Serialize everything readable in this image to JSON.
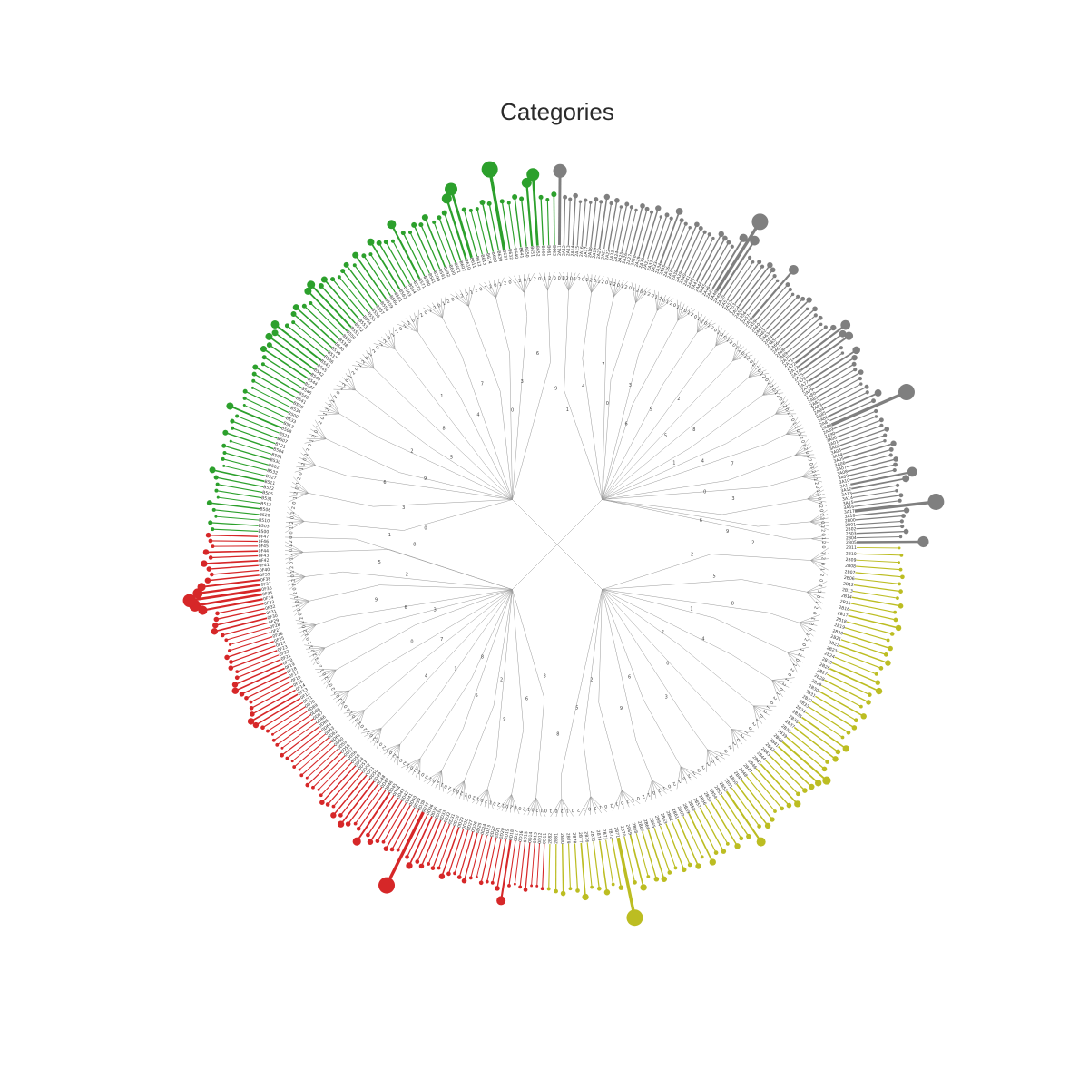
{
  "title": "Categories",
  "groups": [
    {
      "name": "green",
      "color": "#2ca02c",
      "leaves": [
        "B500",
        "B503",
        "B510",
        "B520",
        "B506",
        "B512",
        "B531",
        "B505",
        "B522",
        "B511",
        "B527",
        "B532",
        "B502",
        "B530",
        "B501",
        "B504",
        "B521",
        "B507",
        "B525",
        "B508",
        "B513",
        "B533",
        "B509",
        "B534",
        "B526",
        "B541",
        "B548",
        "B546",
        "B547",
        "B544",
        "B549",
        "B542",
        "B545",
        "B543",
        "B536",
        "B537",
        "B539",
        "B540",
        "B538",
        "B535",
        "B550",
        "B551",
        "B552",
        "B553",
        "B554",
        "B555",
        "B556",
        "B557",
        "B558",
        "B559",
        "B560",
        "B561",
        "B562",
        "B563",
        "B564",
        "B570",
        "B571",
        "B580",
        "B581",
        "B590",
        "B591",
        "B592",
        "B600",
        "B601",
        "B602",
        "B610",
        "B611",
        "B612",
        "B613",
        "B614",
        "B620",
        "B630",
        "B631",
        "B632",
        "B640",
        "B641",
        "B650",
        "B651",
        "B652",
        "B660",
        "B661",
        "B662"
      ],
      "values": [
        2,
        3,
        1,
        2,
        4,
        1,
        2,
        2,
        3,
        5,
        1,
        2,
        2,
        3,
        1,
        4,
        2,
        3,
        2,
        6,
        1,
        2,
        3,
        1,
        2,
        3,
        4,
        2,
        3,
        5,
        4,
        6,
        5,
        7,
        3,
        2,
        4,
        5,
        3,
        2,
        6,
        7,
        4,
        5,
        3,
        2,
        3,
        4,
        2,
        5,
        3,
        2,
        6,
        4,
        3,
        2,
        8,
        3,
        2,
        4,
        3,
        5,
        2,
        3,
        4,
        9,
        12,
        3,
        2,
        2,
        4,
        3,
        16,
        3,
        2,
        4,
        3,
        9,
        12,
        3,
        2,
        4
      ]
    },
    {
      "name": "gray",
      "color": "#7f7f7f",
      "leaves": [
        "2A11",
        "2A12",
        "2A13",
        "2A14",
        "2A15",
        "2A16",
        "2A17",
        "2A18",
        "2A19",
        "2A20",
        "2A21",
        "2A22",
        "2A23",
        "2A24",
        "2A25",
        "2A26",
        "2A27",
        "2A28",
        "2A29",
        "2A30",
        "2A31",
        "2A32",
        "2A33",
        "2A34",
        "2A35",
        "2A36",
        "2A37",
        "2A38",
        "2A39",
        "2A40",
        "2A41",
        "2A42",
        "2A43",
        "2A44",
        "2A45",
        "2A46",
        "2A47",
        "2A48",
        "2A49",
        "2A50",
        "2A51",
        "2A52",
        "2A53",
        "2A54",
        "2A55",
        "2A56",
        "2A57",
        "2A58",
        "2A59",
        "2A60",
        "2A61",
        "2A62",
        "2A63",
        "2A64",
        "2A65",
        "2A66",
        "2A67",
        "2A68",
        "2A69",
        "2A70",
        "2A71",
        "2A72",
        "2A73",
        "2A74",
        "2A75",
        "2A76",
        "2A77",
        "2A78",
        "2A79",
        "2A80",
        "2A81",
        "2A82",
        "2A83",
        "2A84",
        "2A85",
        "2A86",
        "2A87",
        "2A88",
        "2A89",
        "2A90",
        "3A00",
        "3A01",
        "3A02",
        "3A03",
        "3A04",
        "3A05",
        "3A06",
        "3A07",
        "3A08",
        "3A09",
        "3A10",
        "3A11",
        "3A12",
        "3A13",
        "3A14",
        "3A15",
        "3A16",
        "3A17",
        "3A18",
        "2B00",
        "2B01",
        "2B02",
        "2B03",
        "2B04",
        "2B05"
      ],
      "values": [
        18,
        4,
        3,
        5,
        2,
        3,
        2,
        4,
        3,
        6,
        3,
        5,
        2,
        4,
        3,
        2,
        5,
        4,
        3,
        6,
        2,
        4,
        3,
        8,
        4,
        3,
        2,
        5,
        4,
        3,
        3,
        2,
        6,
        5,
        4,
        3,
        10,
        22,
        12,
        3,
        2,
        4,
        3,
        6,
        5,
        3,
        2,
        12,
        4,
        3,
        2,
        3,
        4,
        6,
        2,
        5,
        3,
        4,
        2,
        3,
        6,
        12,
        8,
        10,
        3,
        2,
        9,
        6,
        4,
        3,
        5,
        3,
        2,
        4,
        3,
        8,
        4,
        22,
        3,
        2,
        4,
        3,
        5,
        3,
        2,
        6,
        4,
        3,
        5,
        4,
        3,
        12,
        8,
        3,
        2,
        4,
        3,
        22,
        6,
        4,
        3,
        3,
        5,
        2,
        14
      ]
    },
    {
      "name": "olive",
      "color": "#bcbd22",
      "leaves": [
        "2B11",
        "2B10",
        "2B09",
        "2B08",
        "2B07",
        "2B06",
        "2B12",
        "2B13",
        "2B14",
        "2B15",
        "2B16",
        "2B17",
        "2B18",
        "2B19",
        "2B20",
        "2B21",
        "2B22",
        "2B23",
        "2B24",
        "2B25",
        "2B26",
        "2B27",
        "2B28",
        "2B29",
        "2B30",
        "2B31",
        "2B32",
        "2B33",
        "2B34",
        "2B35",
        "2B36",
        "2B37",
        "2B38",
        "2B39",
        "2B40",
        "2B41",
        "2B42",
        "2B43",
        "2B44",
        "2B45",
        "2B46",
        "2B47",
        "2B48",
        "2B49",
        "2B50",
        "2B51",
        "2B52",
        "2B53",
        "2B54",
        "2B55",
        "2B56",
        "2B57",
        "2B58",
        "2B59",
        "2B60",
        "2B61",
        "2B62",
        "2B63",
        "2B64",
        "2B65",
        "2B66",
        "2B67",
        "2B68",
        "2B69",
        "2B70",
        "2B71",
        "2B72",
        "2B73",
        "2B74",
        "2B75",
        "2B76",
        "2B77",
        "2B78",
        "2B79",
        "2B80",
        "2B81",
        "2B82"
      ],
      "values": [
        1,
        2,
        1,
        2,
        3,
        2,
        3,
        2,
        4,
        2,
        3,
        5,
        3,
        2,
        4,
        3,
        5,
        3,
        2,
        4,
        6,
        3,
        4,
        2,
        5,
        3,
        4,
        3,
        2,
        6,
        4,
        5,
        3,
        4,
        8,
        6,
        5,
        4,
        3,
        6,
        4,
        3,
        2,
        4,
        5,
        3,
        9,
        4,
        3,
        5,
        2,
        4,
        3,
        6,
        2,
        5,
        3,
        4,
        2,
        3,
        5,
        4,
        2,
        6,
        3,
        18,
        4,
        2,
        5,
        3,
        2,
        6,
        3,
        2,
        4,
        3,
        2
      ]
    },
    {
      "name": "red",
      "color": "#d62728",
      "leaves": [
        "0D11",
        "0D12",
        "0D13",
        "0D14",
        "0D15",
        "0D16",
        "0D17",
        "0D18",
        "0D19",
        "0D20",
        "0D21",
        "0D22",
        "0D23",
        "0D24",
        "0D25",
        "0D26",
        "0D27",
        "0D28",
        "0D29",
        "0D30",
        "0D31",
        "0D32",
        "0D33",
        "0D34",
        "0D35",
        "0D36",
        "0D37",
        "0D38",
        "0D39",
        "0D40",
        "0D41",
        "0D42",
        "0D43",
        "0D44",
        "0D45",
        "0D46",
        "0D47",
        "0D48",
        "0D49",
        "0D50",
        "0D51",
        "0D52",
        "0D53",
        "0D54",
        "0D55",
        "0D56",
        "0D57",
        "0D58",
        "0D59",
        "0D60",
        "0D61",
        "0D62",
        "0D63",
        "0D64",
        "0D65",
        "0D66",
        "0D67",
        "0D68",
        "0D69",
        "0D70",
        "0F11",
        "0F12",
        "0F13",
        "0F14",
        "0F15",
        "0F16",
        "0F17",
        "0F18",
        "0F19",
        "0F20",
        "0F21",
        "0F22",
        "0F23",
        "0F24",
        "0F25",
        "0F26",
        "0F27",
        "0F28",
        "0F29",
        "0F30",
        "0F31",
        "0F32",
        "0F33",
        "0F34",
        "0F35",
        "0F36",
        "0F37",
        "0F38",
        "0F39",
        "0F40",
        "0F41",
        "0F42",
        "0F43",
        "0F44",
        "0F45",
        "0F46",
        "0F47"
      ],
      "values": [
        2,
        1,
        1,
        3,
        2,
        1,
        2,
        9,
        4,
        2,
        2,
        3,
        1,
        2,
        4,
        3,
        2,
        3,
        5,
        2,
        3,
        2,
        4,
        3,
        6,
        3,
        18,
        2,
        3,
        4,
        2,
        3,
        5,
        3,
        8,
        3,
        2,
        4,
        6,
        3,
        5,
        2,
        3,
        4,
        2,
        1,
        2,
        3,
        1,
        2,
        1,
        2,
        1,
        2,
        3,
        1,
        2,
        2,
        1,
        2,
        3,
        5,
        6,
        4,
        3,
        2,
        3,
        4,
        6,
        5,
        3,
        2,
        4,
        3,
        4,
        2,
        1,
        2,
        3,
        6,
        5,
        4,
        3,
        9,
        12,
        14,
        10,
        8,
        5,
        3,
        4,
        6,
        3,
        5,
        2,
        3,
        4
      ]
    }
  ],
  "branch_values": [
    "0",
    "1",
    "2",
    "3",
    "4",
    "5",
    "6",
    "7",
    "8",
    "9"
  ]
}
